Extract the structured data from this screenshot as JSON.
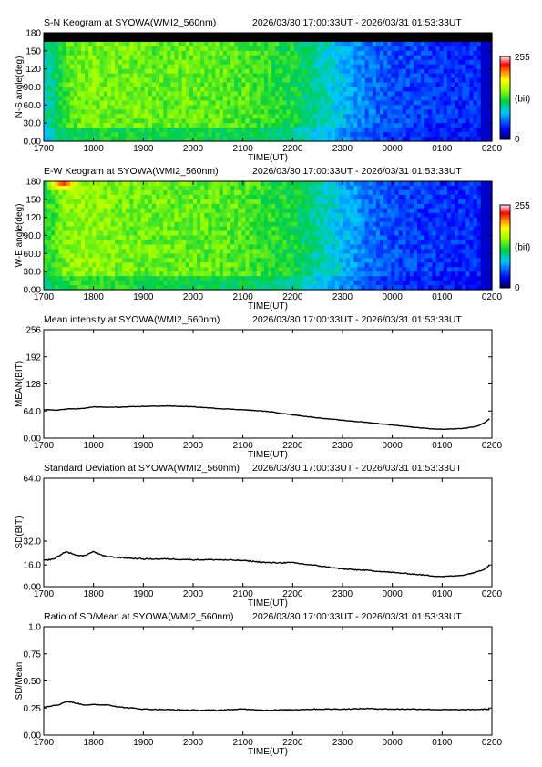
{
  "panels": [
    {
      "id": "sn",
      "type": "keogram",
      "title": "S-N Keogram at SYOWA(WMI2_560nm)",
      "time_range": "2026/03/30 17:00:33UT - 2026/03/31 01:53:33UT",
      "ylabel": "N-S angle(deg)",
      "xlabel": "TIME(UT)",
      "yticks": [
        "0.00",
        "30.0",
        "60.0",
        "90.0",
        "120",
        "150",
        "180"
      ],
      "xticks": [
        "1700",
        "1800",
        "1900",
        "2000",
        "2100",
        "2200",
        "2300",
        "0000",
        "0100",
        "0200"
      ],
      "colorbar": {
        "max": "255",
        "unit": "(bit)",
        "min": "0"
      }
    },
    {
      "id": "ew",
      "type": "keogram",
      "title": "E-W Keogram at SYOWA(WMI2_560nm)",
      "time_range": "2026/03/30 17:00:33UT - 2026/03/31 01:53:33UT",
      "ylabel": "W-E angle(deg)",
      "xlabel": "TIME(UT)",
      "yticks": [
        "0.00",
        "30.0",
        "60.0",
        "90.0",
        "120",
        "150",
        "180"
      ],
      "xticks": [
        "1700",
        "1800",
        "1900",
        "2000",
        "2100",
        "2200",
        "2300",
        "0000",
        "0100",
        "0200"
      ],
      "colorbar": {
        "max": "255",
        "unit": "(bit)",
        "min": "0"
      }
    },
    {
      "id": "mean",
      "type": "line",
      "title": "Mean intensity at SYOWA(WMI2_560nm)",
      "time_range": "2026/03/30 17:00:33UT - 2026/03/31 01:53:33UT",
      "ylabel": "MEAN(BIT)",
      "xlabel": "TIME(UT)",
      "yticks": [
        "0.00",
        "64.0",
        "128",
        "192",
        "256"
      ],
      "xticks": [
        "1700",
        "1800",
        "1900",
        "2000",
        "2100",
        "2200",
        "2300",
        "0000",
        "0100",
        "0200"
      ]
    },
    {
      "id": "sd",
      "type": "line",
      "title": "Standard Deviation at SYOWA(WMI2_560nm)",
      "time_range": "2026/03/30 17:00:33UT - 2026/03/31 01:53:33UT",
      "ylabel": "SD(BIT)",
      "xlabel": "TIME(UT)",
      "yticks": [
        "0.00",
        "16.0",
        "32.0",
        "64.0"
      ],
      "xticks": [
        "1700",
        "1800",
        "1900",
        "2000",
        "2100",
        "2200",
        "2300",
        "0000",
        "0100",
        "0200"
      ]
    },
    {
      "id": "ratio",
      "type": "line",
      "title": "Ratio of SD/Mean at SYOWA(WMI2_560nm)",
      "time_range": "2026/03/30 17:00:33UT - 2026/03/31 01:53:33UT",
      "ylabel": "SD/Mean",
      "xlabel": "TIME(UT)",
      "yticks": [
        "0.00",
        "0.25",
        "0.50",
        "0.75",
        "1.0"
      ],
      "xticks": [
        "1700",
        "1800",
        "1900",
        "2000",
        "2100",
        "2200",
        "2300",
        "0000",
        "0100",
        "0200"
      ]
    }
  ],
  "chart_data": [
    {
      "type": "heatmap",
      "panel": "sn",
      "title": "S-N Keogram at SYOWA(WMI2_560nm)",
      "xlabel": "TIME(UT)",
      "ylabel": "N-S angle(deg)",
      "x_range": [
        "1700",
        "0200"
      ],
      "ylim": [
        0,
        180
      ],
      "color_range": [
        0,
        255
      ],
      "colormap": [
        "#000080",
        "#0000ff",
        "#00c8ff",
        "#00e060",
        "#a0ff00",
        "#ffff00",
        "#ff8000",
        "#ff0000",
        "#ffffff"
      ],
      "missing_band_above_deg": 168,
      "intensity_profile": {
        "t_hours": [
          0,
          0.5,
          1,
          2,
          3,
          4,
          5,
          5.5,
          6,
          6.5,
          7,
          8,
          8.85
        ],
        "level": [
          90,
          135,
          145,
          140,
          140,
          135,
          120,
          100,
          80,
          60,
          50,
          42,
          40
        ]
      }
    },
    {
      "type": "heatmap",
      "panel": "ew",
      "title": "E-W Keogram at SYOWA(WMI2_560nm)",
      "xlabel": "TIME(UT)",
      "ylabel": "W-E angle(deg)",
      "x_range": [
        "1700",
        "0200"
      ],
      "ylim": [
        0,
        180
      ],
      "color_range": [
        0,
        255
      ],
      "colormap": [
        "#000080",
        "#0000ff",
        "#00c8ff",
        "#00e060",
        "#a0ff00",
        "#ffff00",
        "#ff8000",
        "#ff0000",
        "#ffffff"
      ],
      "intensity_profile": {
        "t_hours": [
          0,
          0.5,
          1,
          2,
          3,
          4,
          5,
          5.5,
          6,
          6.5,
          7,
          8,
          8.85
        ],
        "level": [
          120,
          150,
          150,
          140,
          140,
          135,
          120,
          100,
          80,
          60,
          50,
          42,
          40
        ]
      },
      "bright_spot": {
        "t_hours": 0.4,
        "angle_deg": 175,
        "level": 230
      }
    },
    {
      "type": "line",
      "panel": "mean",
      "title": "Mean intensity at SYOWA(WMI2_560nm)",
      "xlabel": "TIME(UT)",
      "ylabel": "MEAN(BIT)",
      "ylim": [
        0,
        256
      ],
      "x_unit": "hours after 1700 UT",
      "series": [
        {
          "x": [
            0,
            0.25,
            0.5,
            0.8,
            1.0,
            1.2,
            1.5,
            2.0,
            2.5,
            3.0,
            3.5,
            4.0,
            4.5,
            5.0,
            5.5,
            6.0,
            6.5,
            7.0,
            7.5,
            7.8,
            8.0,
            8.3,
            8.5,
            8.7,
            8.85,
            9.0
          ],
          "y": [
            67,
            66,
            69,
            70,
            74,
            73,
            73,
            75,
            76,
            74,
            70,
            67,
            63,
            55,
            48,
            42,
            37,
            31,
            25,
            22,
            21,
            22,
            24,
            28,
            36,
            50
          ]
        }
      ]
    },
    {
      "type": "line",
      "panel": "sd",
      "title": "Standard Deviation at SYOWA(WMI2_560nm)",
      "xlabel": "TIME(UT)",
      "ylabel": "SD(BIT)",
      "ylim": [
        0,
        64
      ],
      "y_scale": "log-like (ticks 0, 16, 32, 64)",
      "x_unit": "hours after 1700 UT",
      "series": [
        {
          "x": [
            0,
            0.2,
            0.45,
            0.6,
            0.8,
            1.0,
            1.2,
            1.5,
            2.0,
            2.5,
            3.0,
            3.5,
            4.0,
            4.5,
            5.0,
            5.5,
            6.0,
            6.5,
            7.0,
            7.5,
            7.8,
            8.0,
            8.3,
            8.5,
            8.7,
            8.85,
            9.0
          ],
          "y": [
            19,
            20,
            25,
            23,
            22,
            25,
            22,
            21,
            20,
            20,
            19.5,
            19.5,
            19,
            17.5,
            17.5,
            15.5,
            13,
            12,
            10.5,
            9,
            8,
            7.5,
            8,
            9,
            11,
            13,
            17
          ]
        }
      ]
    },
    {
      "type": "line",
      "panel": "ratio",
      "title": "Ratio of SD/Mean at SYOWA(WMI2_560nm)",
      "xlabel": "TIME(UT)",
      "ylabel": "SD/Mean",
      "ylim": [
        0,
        1
      ],
      "x_unit": "hours after 1700 UT",
      "series": [
        {
          "x": [
            0,
            0.3,
            0.45,
            0.6,
            0.8,
            1.0,
            1.3,
            1.5,
            2.0,
            2.5,
            3.0,
            3.5,
            4.0,
            4.5,
            5.0,
            5.5,
            6.0,
            6.5,
            7.0,
            7.5,
            8.0,
            8.5,
            9.0
          ],
          "y": [
            0.26,
            0.28,
            0.31,
            0.3,
            0.28,
            0.28,
            0.28,
            0.26,
            0.24,
            0.235,
            0.23,
            0.23,
            0.24,
            0.23,
            0.235,
            0.24,
            0.24,
            0.245,
            0.24,
            0.24,
            0.235,
            0.235,
            0.24
          ]
        }
      ]
    }
  ]
}
